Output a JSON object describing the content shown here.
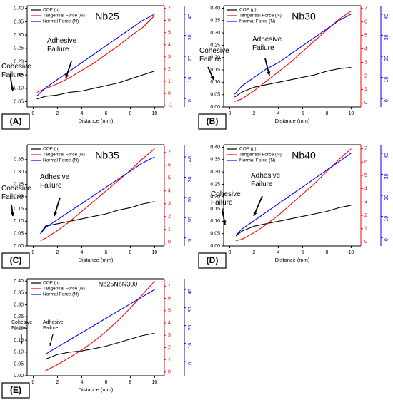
{
  "chart_data": [
    {
      "type": "line",
      "panel": "(A)",
      "title": "Nb25",
      "xlabel": "Distance (mm)",
      "xlim": [
        -0.5,
        10.8
      ],
      "xticks": [
        0,
        2,
        4,
        6,
        8,
        10
      ],
      "ylim": [
        0.03,
        0.41
      ],
      "yticks": [
        0.05,
        {
          "value": 0.1,
          "label": "0.10"
        },
        0.15,
        {
          "value": 0.2,
          "label": "0.20"
        },
        0.25,
        {
          "value": 0.3,
          "label": "0.30"
        },
        0.35,
        {
          "value": 0.4,
          "label": "0.40"
        }
      ],
      "y2lim": [
        -1.1,
        7.2
      ],
      "y2ticks": [
        -1,
        0,
        1,
        2,
        3,
        4,
        5,
        6,
        7
      ],
      "y3lim": [
        -4,
        44
      ],
      "y3ticks": [
        0,
        10,
        20,
        30,
        40
      ],
      "annotations": [
        "Cohesive Failure",
        "Adhesive Failure"
      ],
      "x": [
        0.3,
        1,
        2,
        3,
        4,
        5,
        6,
        7,
        8,
        9,
        10
      ],
      "series": [
        {
          "name": "COF (μ)",
          "color": "#000000",
          "axis": "y",
          "values": [
            0.06,
            0.07,
            0.075,
            0.085,
            0.09,
            0.1,
            0.11,
            0.12,
            0.135,
            0.15,
            0.165
          ]
        },
        {
          "name": "Tangential Force (N)",
          "color": "#ff0000",
          "axis": "y2",
          "values": [
            0.1,
            0.4,
            0.8,
            1.3,
            1.9,
            2.5,
            3.2,
            3.9,
            4.7,
            5.4,
            6.4
          ]
        },
        {
          "name": "Normal Force (N)",
          "color": "#0000ff",
          "axis": "y3",
          "values": [
            1.2,
            5,
            9,
            13,
            17,
            21,
            25,
            29,
            33,
            37,
            40
          ]
        }
      ]
    },
    {
      "type": "line",
      "panel": "(B)",
      "title": "Nb30",
      "xlabel": "Distance (mm)",
      "xlim": [
        -0.5,
        10.8
      ],
      "xticks": [
        0,
        2,
        4,
        6,
        8,
        10
      ],
      "ylim": [
        0.0,
        0.41
      ],
      "yticks": [
        {
          "value": 0,
          "label": "0.00"
        },
        0.05,
        {
          "value": 0.1,
          "label": "0.10"
        },
        0.15,
        {
          "value": 0.2,
          "label": "0.20"
        },
        0.25,
        {
          "value": 0.3,
          "label": "0.30"
        },
        0.35,
        {
          "value": 0.4,
          "label": "0.40"
        }
      ],
      "y2lim": [
        -0.3,
        7.2
      ],
      "y2ticks": [
        0,
        1,
        2,
        3,
        4,
        5,
        6,
        7
      ],
      "y3lim": [
        -4,
        44
      ],
      "y3ticks": [
        0,
        10,
        20,
        30,
        40
      ],
      "annotations": [
        "Cohesive Failure",
        "Adhesive Failure"
      ],
      "x": [
        0.4,
        1,
        2,
        3,
        4,
        5,
        6,
        7,
        8,
        9,
        10
      ],
      "series": [
        {
          "name": "COF (μ)",
          "color": "#000000",
          "axis": "y",
          "values": [
            0.04,
            0.06,
            0.08,
            0.09,
            0.1,
            0.11,
            0.12,
            0.13,
            0.145,
            0.155,
            0.16
          ]
        },
        {
          "name": "Tangential Force (N)",
          "color": "#ff0000",
          "axis": "y2",
          "values": [
            0.1,
            0.3,
            0.9,
            1.6,
            2.3,
            3.0,
            3.8,
            4.6,
            5.4,
            6.2,
            6.8
          ]
        },
        {
          "name": "Normal Force (N)",
          "color": "#0000ff",
          "axis": "y3",
          "values": [
            2,
            6,
            10,
            14,
            17,
            21,
            25,
            29,
            33,
            37,
            40
          ]
        }
      ]
    },
    {
      "type": "line",
      "panel": "(C)",
      "title": "Nb35",
      "xlabel": "Distance (mm)",
      "xlim": [
        -0.5,
        10.8
      ],
      "xticks": [
        0,
        2,
        4,
        6,
        8,
        10
      ],
      "ylim": [
        0.0,
        0.41
      ],
      "yticks": [
        {
          "value": 0,
          "label": "0.00"
        },
        0.05,
        {
          "value": 0.1,
          "label": "0.10"
        },
        0.15,
        {
          "value": 0.2,
          "label": "0.20"
        },
        0.25,
        {
          "value": 0.3,
          "label": "0.30"
        },
        0.35
      ],
      "y2lim": [
        -0.3,
        7.6
      ],
      "y2ticks": [
        0,
        1,
        2,
        3,
        4,
        5,
        6,
        7
      ],
      "y3lim": [
        -4,
        46
      ],
      "y3ticks": [
        0,
        10,
        20,
        30,
        40
      ],
      "annotations": [
        "Cohesive Failure",
        "Adhesive Failure"
      ],
      "x": [
        0.6,
        1,
        2,
        3,
        4,
        5,
        6,
        7,
        8,
        9,
        10
      ],
      "series": [
        {
          "name": "COF (μ)",
          "color": "#000000",
          "axis": "y",
          "values": [
            0.05,
            0.08,
            0.09,
            0.1,
            0.11,
            0.12,
            0.13,
            0.145,
            0.155,
            0.17,
            0.18
          ]
        },
        {
          "name": "Tangential Force (N)",
          "color": "#ff0000",
          "axis": "y2",
          "values": [
            0.1,
            0.3,
            0.9,
            1.6,
            2.4,
            3.2,
            4.0,
            4.8,
            5.6,
            6.5,
            7.3
          ]
        },
        {
          "name": "Normal Force (N)",
          "color": "#0000ff",
          "axis": "y3",
          "values": [
            2,
            5,
            9,
            13,
            17,
            21,
            25,
            29,
            33,
            37,
            40
          ]
        }
      ]
    },
    {
      "type": "line",
      "panel": "(D)",
      "title": "Nb40",
      "xlabel": "Distance (mm)",
      "xlim": [
        -0.5,
        10.8
      ],
      "xticks": [
        0,
        2,
        4,
        6,
        8,
        10
      ],
      "ylim": [
        0.0,
        0.41
      ],
      "yticks": [
        {
          "value": 0,
          "label": "0.00"
        },
        0.05,
        {
          "value": 0.1,
          "label": "0.10"
        },
        0.15,
        {
          "value": 0.2,
          "label": "0.20"
        },
        0.25,
        {
          "value": 0.3,
          "label": "0.30"
        },
        0.35,
        {
          "value": 0.4,
          "label": "0.40"
        }
      ],
      "y2lim": [
        -0.3,
        7.3
      ],
      "y2ticks": [
        0,
        1,
        2,
        3,
        4,
        5,
        6,
        7
      ],
      "y3lim": [
        -4,
        44
      ],
      "y3ticks": [
        0,
        10,
        20,
        30,
        40
      ],
      "annotations": [
        "Cohesive Failure",
        "Adhesive Failure"
      ],
      "x": [
        0.5,
        1,
        2,
        3,
        4,
        5,
        6,
        7,
        8,
        9,
        10
      ],
      "series": [
        {
          "name": "COF (μ)",
          "color": "#000000",
          "axis": "y",
          "values": [
            0.04,
            0.06,
            0.08,
            0.09,
            0.1,
            0.11,
            0.12,
            0.13,
            0.14,
            0.155,
            0.165
          ]
        },
        {
          "name": "Tangential Force (N)",
          "color": "#ff0000",
          "axis": "y2",
          "values": [
            0.1,
            0.2,
            0.7,
            1.3,
            2.0,
            2.8,
            3.6,
            4.4,
            5.3,
            6.2,
            7.0
          ]
        },
        {
          "name": "Normal Force (N)",
          "color": "#0000ff",
          "axis": "y3",
          "values": [
            1,
            4,
            8,
            12,
            16,
            20,
            24,
            28,
            32,
            36,
            40
          ]
        }
      ]
    },
    {
      "type": "line",
      "panel": "(E)",
      "title": "Nb25NbN300",
      "xlabel": "Distance (mm)",
      "xlim": [
        -0.5,
        10.8
      ],
      "xticks": [
        0,
        2,
        4,
        6,
        8,
        10
      ],
      "ylim": [
        0.0,
        0.41
      ],
      "yticks": [
        {
          "value": 0,
          "label": "0.00"
        },
        0.05,
        {
          "value": 0.1,
          "label": "0.10"
        },
        0.15,
        {
          "value": 0.2,
          "label": "0.20"
        },
        0.25,
        {
          "value": 0.3,
          "label": "0.30"
        },
        0.35,
        {
          "value": 0.4,
          "label": "0.40"
        }
      ],
      "y2lim": [
        -0.3,
        7.6
      ],
      "y2ticks": [
        0,
        1,
        2,
        3,
        4,
        5,
        6,
        7
      ],
      "y3lim": [
        -8,
        46
      ],
      "y3ticks": [
        0,
        10,
        20,
        30,
        40
      ],
      "annotations": [
        "Cohesive Failure",
        "Adhesive Failure"
      ],
      "x": [
        1,
        2,
        3,
        4,
        5,
        6,
        7,
        8,
        9,
        10
      ],
      "series": [
        {
          "name": "COF (μ)",
          "color": "#000000",
          "axis": "y",
          "values": [
            0.07,
            0.09,
            0.1,
            0.105,
            0.115,
            0.125,
            0.14,
            0.155,
            0.17,
            0.18
          ]
        },
        {
          "name": "Tangential Force (N)",
          "color": "#ff0000",
          "axis": "y2",
          "values": [
            0.1,
            0.6,
            1.2,
            1.8,
            2.5,
            3.3,
            4.2,
            5.2,
            6.3,
            7.4
          ]
        },
        {
          "name": "Normal Force (N)",
          "color": "#0000ff",
          "axis": "y3",
          "values": [
            4,
            8,
            12,
            16,
            20,
            24,
            28,
            32,
            36,
            40
          ]
        }
      ]
    }
  ]
}
